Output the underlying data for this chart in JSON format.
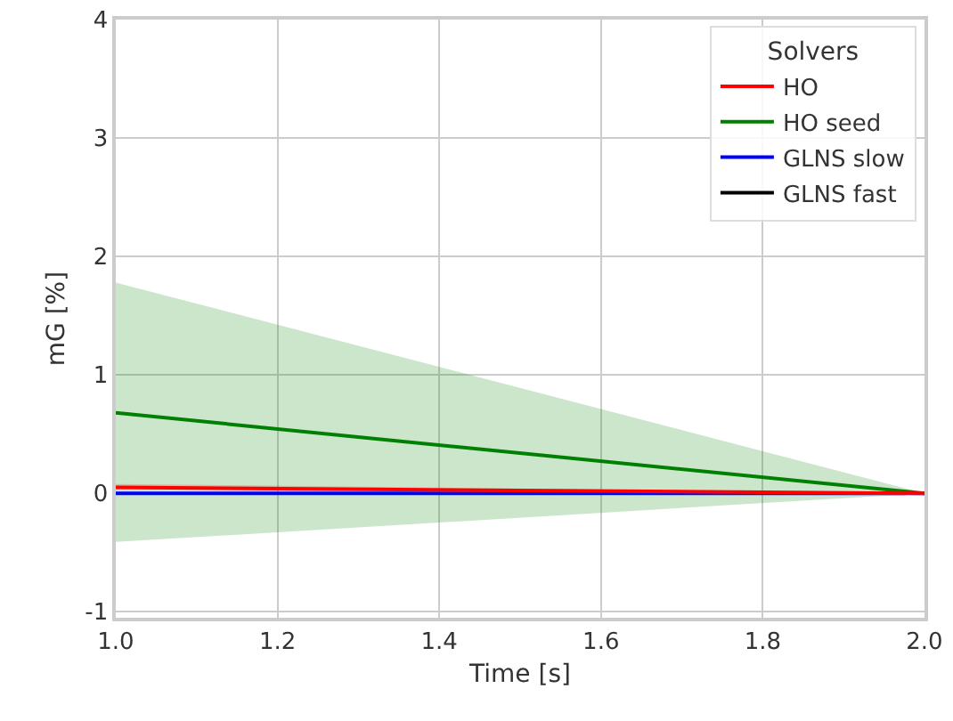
{
  "chart_data": {
    "type": "line",
    "xlabel": "Time [s]",
    "ylabel": "mG [%]",
    "legend_title": "Solvers",
    "x": [
      1.0,
      2.0
    ],
    "series": [
      {
        "name": "HO",
        "color": "#ff0000",
        "values": [
          0.05,
          0.0
        ],
        "lower": [
          0.03,
          0.0
        ],
        "upper": [
          0.08,
          0.0
        ]
      },
      {
        "name": "HO seed",
        "color": "#008000",
        "values": [
          0.68,
          0.0
        ],
        "lower": [
          -0.41,
          0.0
        ],
        "upper": [
          1.78,
          0.0
        ]
      },
      {
        "name": "GLNS slow",
        "color": "#0000ff",
        "values": [
          0.0,
          0.0
        ]
      },
      {
        "name": "GLNS fast",
        "color": "#000000",
        "values": [
          null,
          null
        ]
      }
    ],
    "xlim": [
      1.0,
      2.0
    ],
    "xticks": [
      {
        "value": 1.0,
        "label": "1.0"
      },
      {
        "value": 1.2,
        "label": "1.2"
      },
      {
        "value": 1.4,
        "label": "1.4"
      },
      {
        "value": 1.6,
        "label": "1.6"
      },
      {
        "value": 1.8,
        "label": "1.8"
      },
      {
        "value": 2.0,
        "label": "2.0"
      }
    ],
    "ylim": [
      -1.05,
      4
    ],
    "yticks": [
      -1,
      0,
      1,
      2,
      3,
      4
    ],
    "grid": true,
    "legend": "top right",
    "line_style": "solid",
    "marker": "none"
  }
}
